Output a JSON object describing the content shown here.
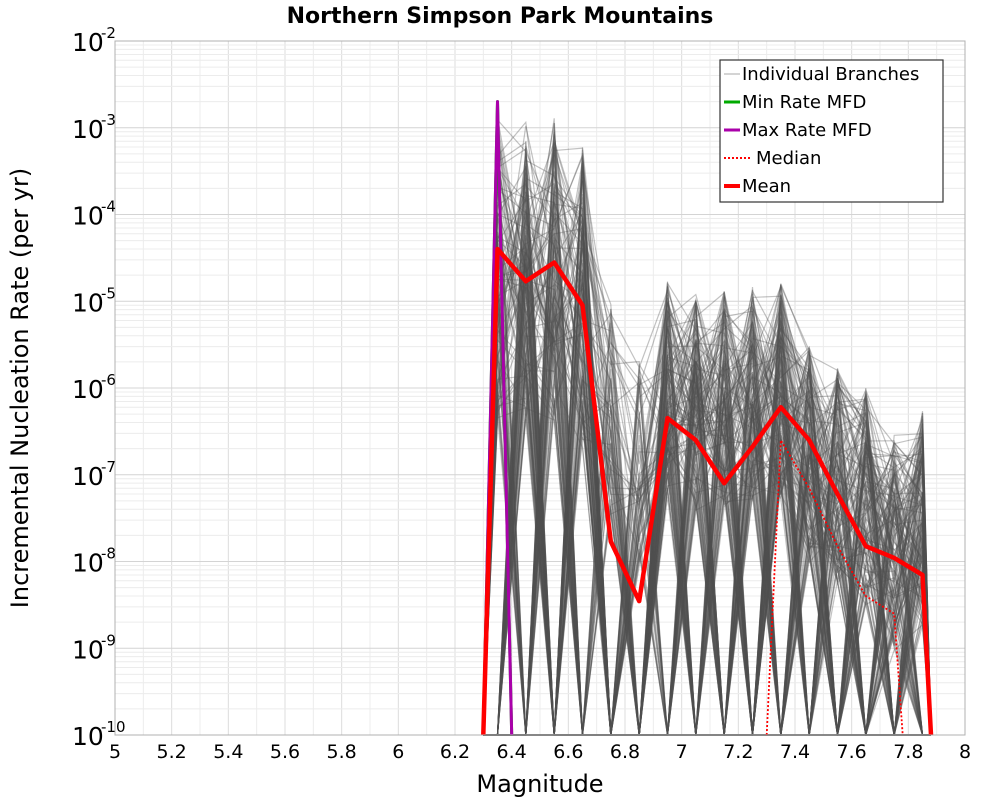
{
  "chart_data": {
    "type": "line",
    "title": "Northern Simpson Park Mountains",
    "xlabel": "Magnitude",
    "ylabel": "Incremental Nucleation Rate (per yr)",
    "xlim": [
      5,
      8
    ],
    "ylim": [
      1e-10,
      0.01
    ],
    "yscale": "log",
    "grid": true,
    "legend_position": "top-right",
    "x_ticks": [
      "5",
      "5.2",
      "5.4",
      "5.6",
      "5.8",
      "6",
      "6.2",
      "6.4",
      "6.6",
      "6.8",
      "7",
      "7.2",
      "7.4",
      "7.6",
      "7.8",
      "8"
    ],
    "y_ticks": [
      {
        "base": "10",
        "exp": "-10",
        "value": 1e-10
      },
      {
        "base": "10",
        "exp": "-9",
        "value": 1e-09
      },
      {
        "base": "10",
        "exp": "-8",
        "value": 1e-08
      },
      {
        "base": "10",
        "exp": "-7",
        "value": 1e-07
      },
      {
        "base": "10",
        "exp": "-6",
        "value": 1e-06
      },
      {
        "base": "10",
        "exp": "-5",
        "value": 1e-05
      },
      {
        "base": "10",
        "exp": "-4",
        "value": 0.0001
      },
      {
        "base": "10",
        "exp": "-3",
        "value": 0.001
      },
      {
        "base": "10",
        "exp": "-2",
        "value": 0.01
      }
    ],
    "series": [
      {
        "name": "Individual Branches",
        "color": "#505050",
        "style": "thin-gray-many",
        "peaks": [
          {
            "x": 6.35,
            "max": 0.0013
          },
          {
            "x": 6.45,
            "max": 0.0013
          },
          {
            "x": 6.55,
            "max": 0.0013
          },
          {
            "x": 6.65,
            "max": 0.0006
          },
          {
            "x": 6.75,
            "max": 1e-05
          },
          {
            "x": 6.85,
            "max": 2.5e-06
          },
          {
            "x": 6.95,
            "max": 1.7e-05
          },
          {
            "x": 7.05,
            "max": 1.2e-05
          },
          {
            "x": 7.15,
            "max": 1.3e-05
          },
          {
            "x": 7.25,
            "max": 1.6e-05
          },
          {
            "x": 7.35,
            "max": 1.6e-05
          },
          {
            "x": 7.45,
            "max": 3e-06
          },
          {
            "x": 7.55,
            "max": 1.7e-06
          },
          {
            "x": 7.65,
            "max": 1e-06
          },
          {
            "x": 7.75,
            "max": 3e-07
          },
          {
            "x": 7.85,
            "max": 5.5e-07
          }
        ]
      },
      {
        "name": "Min Rate MFD",
        "color": "#00aa00",
        "style": "solid",
        "x": [
          6.3,
          6.35,
          6.4
        ],
        "y": [
          1e-10,
          0.002,
          1e-10
        ]
      },
      {
        "name": "Max Rate MFD",
        "color": "#aa00aa",
        "style": "solid",
        "x": [
          6.3,
          6.35,
          6.4
        ],
        "y": [
          1e-10,
          0.002,
          1e-10
        ]
      },
      {
        "name": "Median",
        "color": "#ff0000",
        "style": "dotted",
        "x": [
          7.3,
          7.35,
          7.45,
          7.55,
          7.65,
          7.75,
          7.78
        ],
        "y": [
          1e-10,
          2.5e-07,
          7e-08,
          1.5e-08,
          4e-09,
          2.5e-09,
          1e-10
        ]
      },
      {
        "name": "Mean",
        "color": "#ff0000",
        "style": "thick",
        "x": [
          6.3,
          6.35,
          6.45,
          6.55,
          6.65,
          6.75,
          6.85,
          6.95,
          7.05,
          7.15,
          7.25,
          7.35,
          7.45,
          7.55,
          7.65,
          7.75,
          7.85,
          7.88
        ],
        "y": [
          1e-10,
          4e-05,
          1.7e-05,
          2.8e-05,
          9e-06,
          1.7e-08,
          3.5e-09,
          4.5e-07,
          2.5e-07,
          8e-08,
          2.1e-07,
          6e-07,
          2.5e-07,
          6e-08,
          1.5e-08,
          1.1e-08,
          7e-09,
          1e-10
        ]
      }
    ]
  }
}
